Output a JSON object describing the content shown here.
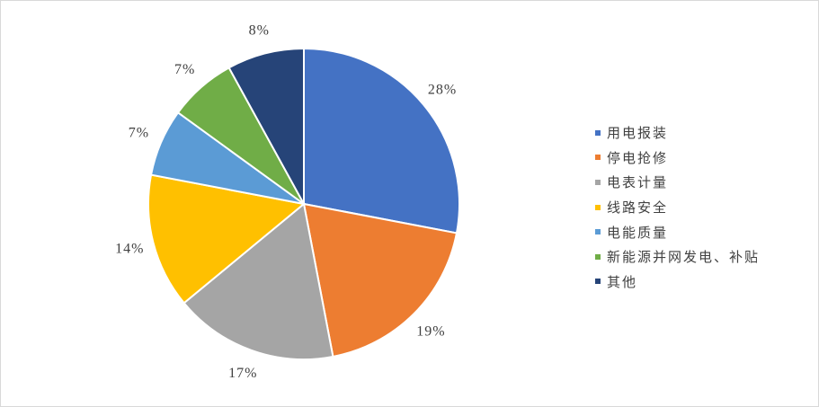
{
  "chart_data": {
    "type": "pie",
    "categories": [
      "用电报装",
      "停电抢修",
      "电表计量",
      "线路安全",
      "电能质量",
      "新能源并网发电、补贴",
      "其他"
    ],
    "values": [
      28,
      19,
      17,
      14,
      7,
      7,
      8
    ],
    "labels": [
      "28%",
      "19%",
      "17%",
      "14%",
      "7%",
      "7%",
      "8%"
    ],
    "colors": [
      "#4472C4",
      "#ED7D31",
      "#A5A5A5",
      "#FFC000",
      "#5B9BD5",
      "#70AD47",
      "#264478"
    ],
    "legend_position": "right"
  }
}
